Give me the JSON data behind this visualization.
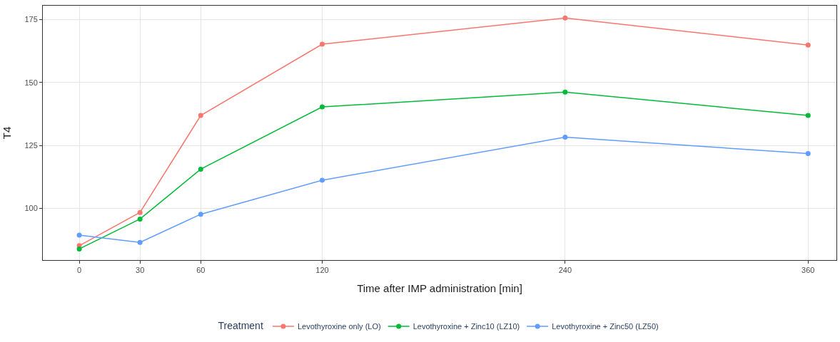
{
  "chart_data": {
    "type": "line",
    "xlabel": "Time after IMP administration [min]",
    "ylabel": "T4",
    "legend_title": "Treatment",
    "x": [
      0,
      30,
      60,
      120,
      240,
      360
    ],
    "series": [
      {
        "name": "Levothyroxine only (LO)",
        "color": "#f8766d",
        "values": [
          85.2,
          98.4,
          136.9,
          165.2,
          175.6,
          164.9
        ]
      },
      {
        "name": "Levothyroxine + Zinc10 (LZ10)",
        "color": "#00ba38",
        "values": [
          83.9,
          95.8,
          115.6,
          140.3,
          146.2,
          136.9
        ]
      },
      {
        "name": "Levothyroxine + Zinc50 (LZ50)",
        "color": "#619cff",
        "values": [
          89.4,
          86.5,
          97.7,
          111.2,
          128.3,
          121.8
        ]
      }
    ],
    "xlim": [
      -18,
      374
    ],
    "ylim": [
      79.5,
      180.5
    ],
    "xticks": [
      0,
      30,
      60,
      120,
      240,
      360
    ],
    "yticks": [
      100,
      125,
      150,
      175
    ],
    "grid": true,
    "legend": "bottom",
    "marker": "circle",
    "line_style": "solid"
  }
}
